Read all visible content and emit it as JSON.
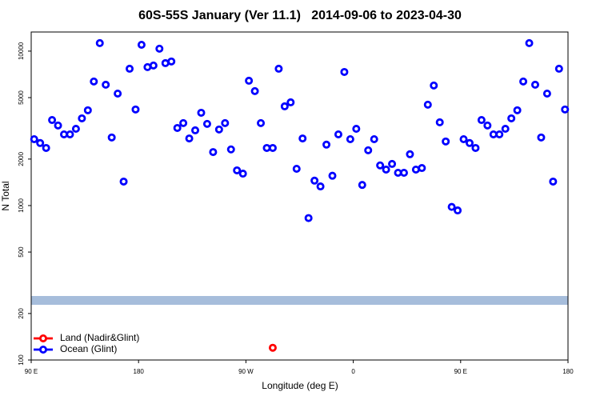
{
  "chart_data": {
    "type": "scatter",
    "title": "60S-55S January (Ver 11.1)   2014-09-06 to 2023-04-30",
    "x_label": "Longitude (deg E)",
    "y_label": "N Total",
    "xlim": [
      90,
      540
    ],
    "xticks": [
      {
        "value": 90,
        "label": "90 E"
      },
      {
        "value": 180,
        "label": "180"
      },
      {
        "value": 270,
        "label": "90 W"
      },
      {
        "value": 360,
        "label": "0"
      },
      {
        "value": 450,
        "label": "90 E"
      },
      {
        "value": 540,
        "label": "180"
      }
    ],
    "ylim": [
      100,
      13300
    ],
    "y_log": true,
    "yticks": [
      100,
      200,
      500,
      1000,
      2000,
      5000,
      10000
    ],
    "legend": "lower left",
    "series": [
      {
        "name": "Land (Nadir&Glint)",
        "color": "#ff0000",
        "x": [
          292.5
        ],
        "values": [
          120
        ]
      },
      {
        "name": "Ocean (Glint)",
        "color": "#0000ff",
        "x": [
          92.5,
          97.5,
          102.5,
          107.5,
          112.5,
          117.5,
          122.5,
          127.5,
          132.5,
          137.5,
          142.5,
          147.5,
          152.5,
          157.5,
          162.5,
          167.5,
          172.5,
          177.5,
          182.5,
          187.5,
          192.5,
          197.5,
          202.5,
          207.5,
          212.5,
          217.5,
          222.5,
          227.5,
          232.5,
          237.5,
          242.5,
          247.5,
          252.5,
          257.5,
          262.5,
          267.5,
          272.5,
          277.5,
          282.5,
          287.5,
          292.5,
          297.5,
          302.5,
          307.5,
          312.5,
          317.5,
          322.5,
          327.5,
          332.5,
          337.5,
          342.5,
          347.5,
          352.5,
          357.5,
          362.5,
          367.5,
          372.5,
          377.5,
          382.5,
          387.5,
          392.5,
          397.5,
          402.5,
          407.5,
          412.5,
          417.5,
          422.5,
          427.5,
          432.5,
          437.5,
          442.5,
          447.5,
          452.5,
          457.5,
          462.5,
          467.5,
          472.5,
          477.5,
          482.5,
          487.5,
          492.5,
          497.5,
          502.5,
          507.5,
          512.5,
          517.5,
          522.5,
          527.5,
          532.5,
          537.5
        ],
        "values": [
          2690,
          2540,
          2360,
          3580,
          3300,
          2890,
          2890,
          3140,
          3670,
          4140,
          6360,
          11270,
          6060,
          2760,
          5310,
          1430,
          7690,
          4190,
          10990,
          7880,
          8070,
          10370,
          8360,
          8570,
          3180,
          3420,
          2720,
          3070,
          3990,
          3380,
          2220,
          3110,
          3420,
          2310,
          1690,
          1610,
          6430,
          5510,
          3420,
          2360,
          2360,
          7690,
          4390,
          4660,
          1730,
          2720,
          830,
          1450,
          1330,
          2480,
          1560,
          2890,
          7330,
          2690,
          3140,
          1360,
          2280,
          2690,
          1820,
          1710,
          1860,
          1630,
          1630,
          2150,
          1710,
          1750,
          4500,
          5990,
          3460,
          2600,
          980,
          930,
          2690,
          2540,
          2360,
          3580,
          3300,
          2890,
          2890,
          3140,
          3670,
          4140,
          6360,
          11270,
          6060,
          2760,
          5310,
          1430,
          7690,
          4190
        ]
      }
    ]
  }
}
